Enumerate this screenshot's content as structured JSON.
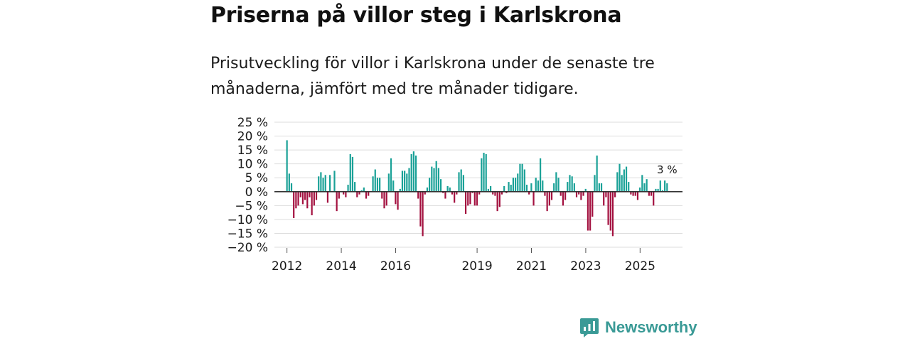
{
  "header": {
    "title": "Priserna på villor steg i Karlskrona",
    "subtitle": "Prisutveckling för villor i Karlskrona under de senaste tre månaderna, jämfört med tre månader tidigare."
  },
  "brand": {
    "name": "Newsworthy",
    "color": "#3a9a96"
  },
  "colors": {
    "positive": "#1aa197",
    "negative": "#a3103f",
    "zero_line": "#333333",
    "grid": "#dddddd"
  },
  "chart_data": {
    "type": "bar",
    "title": "Priserna på villor steg i Karlskrona",
    "xlabel": "",
    "ylabel": "",
    "ylim": [
      -20,
      25
    ],
    "yticks": [
      25,
      20,
      15,
      10,
      5,
      0,
      -5,
      -10,
      -15,
      -20
    ],
    "ytick_labels": [
      "25 %",
      "20 %",
      "15 %",
      "10 %",
      "5 %",
      "0 %",
      "−5 %",
      "−10 %",
      "−15 %",
      "−20 %"
    ],
    "x_start": 2012.0,
    "step": 0.0833,
    "xticks": [
      2012,
      2014,
      2016,
      2019,
      2021,
      2023,
      2025
    ],
    "xtick_labels": [
      "2012",
      "2014",
      "2016",
      "2019",
      "2021",
      "2023",
      "2025"
    ],
    "last_label": "3 %",
    "values": [
      18.5,
      6.5,
      3,
      -9.5,
      -6,
      -5,
      -2,
      -4.5,
      -3,
      -6,
      -2,
      -8.5,
      -5,
      -3,
      5.5,
      7,
      5,
      6,
      -4,
      6,
      0,
      7.5,
      -7,
      -2.5,
      0,
      -1,
      -2,
      2.5,
      13.5,
      12.5,
      3.5,
      -2,
      -1,
      0.5,
      1.5,
      -2.5,
      -1.5,
      0,
      5.5,
      8,
      5,
      5,
      -2.5,
      -6,
      -5,
      6.5,
      12,
      4,
      -4.5,
      -6.5,
      1,
      7.5,
      7.5,
      6.5,
      8.5,
      13.5,
      14.5,
      13,
      -2.5,
      -12.5,
      -16,
      -1,
      1.5,
      5,
      9,
      8.5,
      11,
      8.5,
      4.5,
      -0.5,
      -2.5,
      2,
      1.5,
      -1,
      -4,
      -1,
      7,
      8,
      6,
      -8,
      -5,
      -4.5,
      -0.5,
      -5,
      -5,
      -1,
      12,
      14,
      13.5,
      1,
      2,
      -1,
      -1.5,
      -7,
      -5.5,
      -1,
      2,
      -0.5,
      3.5,
      2.5,
      5,
      5,
      6.5,
      10,
      10,
      8,
      2.5,
      -1,
      3,
      -5,
      5,
      4,
      12,
      4,
      -1.5,
      -7,
      -5,
      -3,
      3,
      7,
      5,
      -1.5,
      -5,
      -3,
      3.5,
      6,
      5.5,
      3,
      -2,
      -1,
      -3,
      -1.5,
      1,
      -14,
      -14,
      -9,
      6,
      13,
      3,
      3,
      -5,
      -2,
      -12,
      -14,
      -16,
      -2,
      7,
      10,
      6,
      8,
      9,
      3.5,
      -1,
      -1.5,
      -1.5,
      -3,
      1.5,
      6,
      3,
      4.5,
      -1.5,
      -1.5,
      -5,
      1,
      1,
      4,
      0.5,
      4,
      3
    ]
  }
}
